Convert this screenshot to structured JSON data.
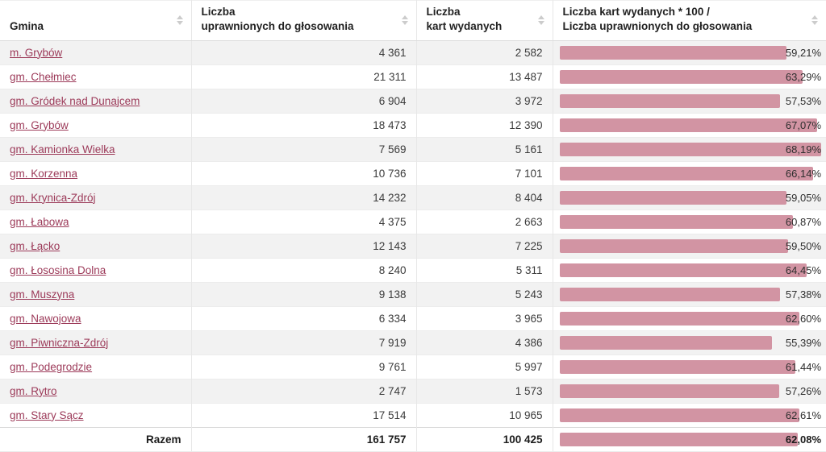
{
  "header": {
    "columns": [
      {
        "label": "Gmina"
      },
      {
        "label": "Liczba\nuprawnionych do głosowania"
      },
      {
        "label": "Liczba\nkart wydanych"
      },
      {
        "label": "Liczba kart wydanych * 100 /\nLiczba uprawnionych do głosowania"
      }
    ]
  },
  "table": {
    "rows": [
      {
        "gmina": "m. Grybów",
        "eligible": "4 361",
        "issued": "2 582",
        "percent": "59,21%"
      },
      {
        "gmina": "gm. Chełmiec",
        "eligible": "21 311",
        "issued": "13 487",
        "percent": "63,29%"
      },
      {
        "gmina": "gm. Gródek nad Dunajcem",
        "eligible": "6 904",
        "issued": "3 972",
        "percent": "57,53%"
      },
      {
        "gmina": "gm. Grybów",
        "eligible": "18 473",
        "issued": "12 390",
        "percent": "67,07%"
      },
      {
        "gmina": "gm. Kamionka Wielka",
        "eligible": "7 569",
        "issued": "5 161",
        "percent": "68,19%"
      },
      {
        "gmina": "gm. Korzenna",
        "eligible": "10 736",
        "issued": "7 101",
        "percent": "66,14%"
      },
      {
        "gmina": "gm. Krynica-Zdrój",
        "eligible": "14 232",
        "issued": "8 404",
        "percent": "59,05%"
      },
      {
        "gmina": "gm. Łabowa",
        "eligible": "4 375",
        "issued": "2 663",
        "percent": "60,87%"
      },
      {
        "gmina": "gm. Łącko",
        "eligible": "12 143",
        "issued": "7 225",
        "percent": "59,50%"
      },
      {
        "gmina": "gm. Łososina Dolna",
        "eligible": "8 240",
        "issued": "5 311",
        "percent": "64,45%"
      },
      {
        "gmina": "gm. Muszyna",
        "eligible": "9 138",
        "issued": "5 243",
        "percent": "57,38%"
      },
      {
        "gmina": "gm. Nawojowa",
        "eligible": "6 334",
        "issued": "3 965",
        "percent": "62,60%"
      },
      {
        "gmina": "gm. Piwniczna-Zdrój",
        "eligible": "7 919",
        "issued": "4 386",
        "percent": "55,39%"
      },
      {
        "gmina": "gm. Podegrodzie",
        "eligible": "9 761",
        "issued": "5 997",
        "percent": "61,44%"
      },
      {
        "gmina": "gm. Rytro",
        "eligible": "2 747",
        "issued": "1 573",
        "percent": "57,26%"
      },
      {
        "gmina": "gm. Stary Sącz",
        "eligible": "17 514",
        "issued": "10 965",
        "percent": "62,61%"
      }
    ],
    "total_row": {
      "label": "Razem",
      "eligible": "161 757",
      "issued": "100 425",
      "percent": "62,08%"
    }
  },
  "chart_data": {
    "type": "table",
    "columns": [
      "Gmina",
      "Liczba uprawnionych do głosowania",
      "Liczba kart wydanych",
      "Liczba kart wydanych * 100 / Liczba uprawnionych do głosowania"
    ],
    "rows": [
      [
        "m. Grybów",
        4361,
        2582,
        59.21
      ],
      [
        "gm. Chełmiec",
        21311,
        13487,
        63.29
      ],
      [
        "gm. Gródek nad Dunajcem",
        6904,
        3972,
        57.53
      ],
      [
        "gm. Grybów",
        18473,
        12390,
        67.07
      ],
      [
        "gm. Kamionka Wielka",
        7569,
        5161,
        68.19
      ],
      [
        "gm. Korzenna",
        10736,
        7101,
        66.14
      ],
      [
        "gm. Krynica-Zdrój",
        14232,
        8404,
        59.05
      ],
      [
        "gm. Łabowa",
        4375,
        2663,
        60.87
      ],
      [
        "gm. Łącko",
        12143,
        7225,
        59.5
      ],
      [
        "gm. Łososina Dolna",
        8240,
        5311,
        64.45
      ],
      [
        "gm. Muszyna",
        9138,
        5243,
        57.38
      ],
      [
        "gm. Nawojowa",
        6334,
        3965,
        62.6
      ],
      [
        "gm. Piwniczna-Zdrój",
        7919,
        4386,
        55.39
      ],
      [
        "gm. Podegrodzie",
        9761,
        5997,
        61.44
      ],
      [
        "gm. Rytro",
        2747,
        1573,
        57.26
      ],
      [
        "gm. Stary Sącz",
        17514,
        10965,
        62.61
      ]
    ],
    "total": [
      "Razem",
      161757,
      100425,
      62.08
    ],
    "bar": {
      "color": "#d294a3",
      "scale_max_percent": 68.19,
      "note": "bar width proportional to percent; 68.19% renders full width"
    }
  },
  "colors": {
    "bar": "#d294a3",
    "link": "#9c3a59",
    "row_stripe": "#f2f2f2",
    "header_text": "#222222",
    "cell_text": "#3b3b3b"
  }
}
